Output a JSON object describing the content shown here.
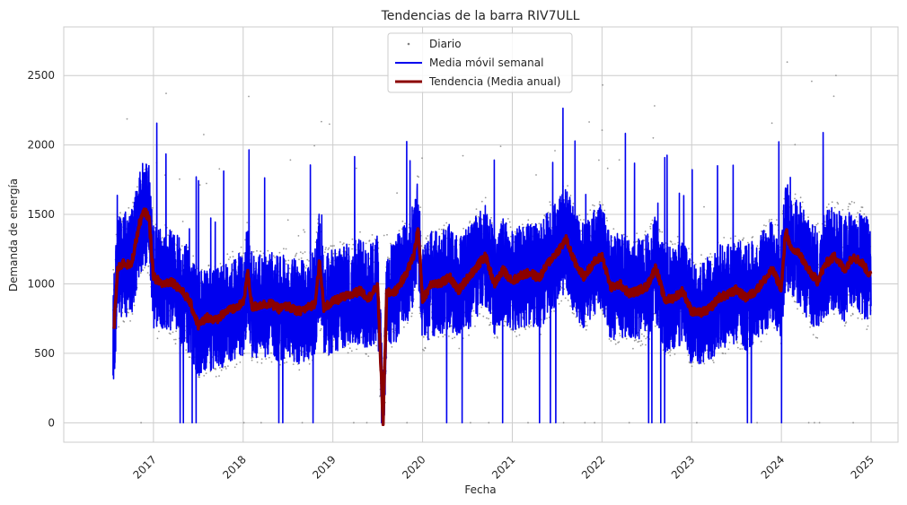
{
  "chart_data": {
    "type": "line",
    "title": "Tendencias de la barra RIV7ULL",
    "xlabel": "Fecha",
    "ylabel": "Demanda de energía",
    "ylim": [
      -140,
      2850
    ],
    "xlim": [
      2016.0,
      2025.3
    ],
    "grid": true,
    "legend_position": "top-center",
    "colors": {
      "daily": "#808080",
      "weekly": "#0000ee",
      "trend": "#8b0000",
      "grid": "#cccccc",
      "frame": "#cccccc"
    },
    "y_ticks": [
      0,
      500,
      1000,
      1500,
      2000,
      2500
    ],
    "x_ticks": [
      {
        "label": "2017",
        "value": 2017
      },
      {
        "label": "2018",
        "value": 2018
      },
      {
        "label": "2019",
        "value": 2019
      },
      {
        "label": "2020",
        "value": 2020
      },
      {
        "label": "2021",
        "value": 2021
      },
      {
        "label": "2022",
        "value": 2022
      },
      {
        "label": "2023",
        "value": 2023
      },
      {
        "label": "2024",
        "value": 2024
      },
      {
        "label": "2025",
        "value": 2025
      }
    ],
    "series": [
      {
        "name": "Diario",
        "style": "scatter",
        "date_range": [
          2016.55,
          2025.0
        ],
        "approx_mean": 980,
        "approx_band": [
          550,
          1450
        ],
        "approx_peak": 2720
      },
      {
        "name": "Media móvil semanal",
        "style": "line",
        "date_range": [
          2016.55,
          2025.0
        ],
        "approx_band": [
          550,
          1450
        ],
        "approx_peak": 2350
      },
      {
        "name": "Tendencia (Media anual)",
        "style": "line",
        "x": [
          2016.56,
          2016.6,
          2016.66,
          2016.75,
          2016.85,
          2016.9,
          2016.95,
          2017.0,
          2017.1,
          2017.2,
          2017.3,
          2017.4,
          2017.5,
          2017.6,
          2017.7,
          2017.8,
          2017.9,
          2018.0,
          2018.05,
          2018.1,
          2018.2,
          2018.3,
          2018.4,
          2018.5,
          2018.6,
          2018.7,
          2018.8,
          2018.85,
          2018.9,
          2019.0,
          2019.1,
          2019.2,
          2019.3,
          2019.4,
          2019.5,
          2019.56,
          2019.6,
          2019.7,
          2019.8,
          2019.9,
          2019.95,
          2020.0,
          2020.1,
          2020.2,
          2020.3,
          2020.4,
          2020.5,
          2020.6,
          2020.7,
          2020.8,
          2020.9,
          2021.0,
          2021.1,
          2021.2,
          2021.3,
          2021.4,
          2021.5,
          2021.6,
          2021.7,
          2021.8,
          2021.9,
          2022.0,
          2022.1,
          2022.2,
          2022.3,
          2022.4,
          2022.5,
          2022.6,
          2022.7,
          2022.8,
          2022.9,
          2023.0,
          2023.1,
          2023.2,
          2023.3,
          2023.4,
          2023.5,
          2023.6,
          2023.7,
          2023.8,
          2023.9,
          2024.0,
          2024.05,
          2024.1,
          2024.2,
          2024.3,
          2024.4,
          2024.5,
          2024.6,
          2024.7,
          2024.8,
          2024.9,
          2025.0
        ],
        "values": [
          680,
          1100,
          1150,
          1130,
          1450,
          1520,
          1480,
          1050,
          1000,
          1020,
          960,
          880,
          700,
          760,
          740,
          800,
          820,
          860,
          1080,
          830,
          850,
          860,
          820,
          840,
          800,
          820,
          860,
          1150,
          830,
          870,
          900,
          920,
          950,
          900,
          980,
          0,
          930,
          950,
          1050,
          1200,
          1400,
          880,
          1010,
          1000,
          1050,
          950,
          1040,
          1120,
          1200,
          1000,
          1100,
          1020,
          1060,
          1080,
          1040,
          1150,
          1230,
          1320,
          1150,
          1050,
          1150,
          1200,
          970,
          1000,
          930,
          950,
          980,
          1120,
          880,
          900,
          950,
          800,
          790,
          820,
          900,
          920,
          960,
          900,
          940,
          1020,
          1100,
          970,
          1400,
          1250,
          1220,
          1100,
          1020,
          1150,
          1200,
          1100,
          1200,
          1150,
          1050
        ]
      }
    ]
  }
}
